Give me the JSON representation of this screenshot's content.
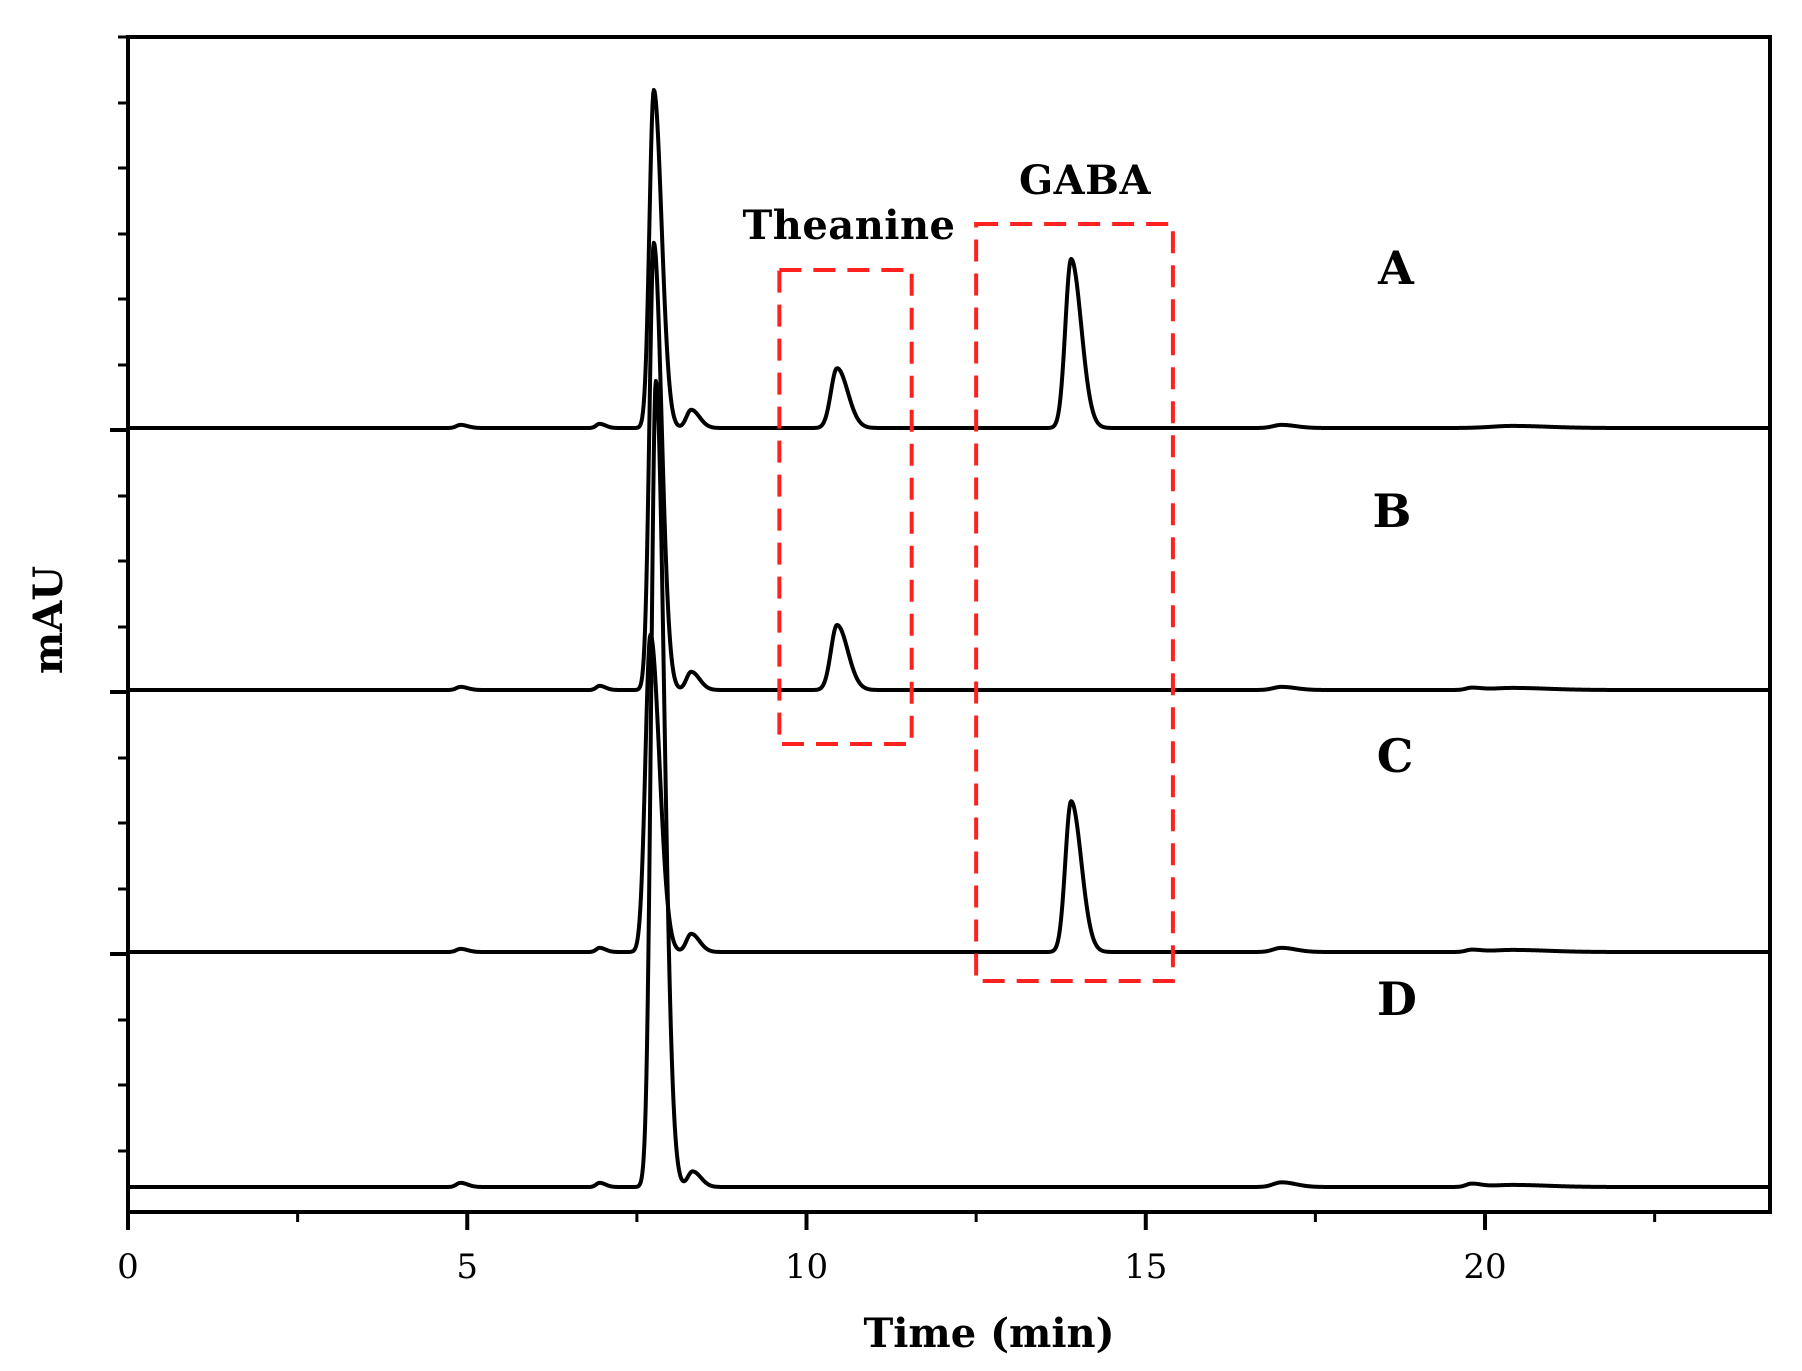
{
  "chart_data": {
    "type": "line",
    "title": "",
    "xlabel": "Time (min)",
    "ylabel": "mAU",
    "xlim": [
      0,
      24.2
    ],
    "xticks": [
      0,
      5,
      10,
      15,
      20
    ],
    "xtick_labels": [
      "0",
      "5",
      "10",
      "15",
      "20"
    ],
    "grid": false,
    "legend": "right",
    "annotations": [
      {
        "text": "Theanine",
        "x_range": [
          9.6,
          11.55
        ]
      },
      {
        "text": "GABA",
        "x_range": [
          12.5,
          15.4
        ]
      }
    ],
    "series": [
      {
        "name": "A",
        "baseline": 3,
        "peaks": [
          {
            "t": 4.9,
            "h": 0.012,
            "w": 0.06
          },
          {
            "t": 6.95,
            "h": 0.016,
            "w": 0.05
          },
          {
            "t": 7.75,
            "h": 1.3,
            "w": 0.065
          },
          {
            "t": 8.3,
            "h": 0.07,
            "w": 0.07
          },
          {
            "t": 10.45,
            "h": 0.23,
            "w": 0.09
          },
          {
            "t": 13.9,
            "h": 0.65,
            "w": 0.085
          },
          {
            "t": 17.0,
            "h": 0.012,
            "w": 0.12
          },
          {
            "t": 20.4,
            "h": 0.008,
            "w": 0.3
          }
        ]
      },
      {
        "name": "B",
        "baseline": 2,
        "peaks": [
          {
            "t": 4.9,
            "h": 0.012,
            "w": 0.06
          },
          {
            "t": 6.95,
            "h": 0.016,
            "w": 0.05
          },
          {
            "t": 7.75,
            "h": 1.72,
            "w": 0.065
          },
          {
            "t": 8.3,
            "h": 0.07,
            "w": 0.07
          },
          {
            "t": 10.45,
            "h": 0.25,
            "w": 0.09
          },
          {
            "t": 17.0,
            "h": 0.012,
            "w": 0.12
          },
          {
            "t": 19.8,
            "h": 0.008,
            "w": 0.08
          },
          {
            "t": 20.4,
            "h": 0.008,
            "w": 0.3
          }
        ]
      },
      {
        "name": "C",
        "baseline": 1,
        "peaks": [
          {
            "t": 4.9,
            "h": 0.012,
            "w": 0.06
          },
          {
            "t": 6.95,
            "h": 0.016,
            "w": 0.05
          },
          {
            "t": 7.7,
            "h": 1.22,
            "w": 0.075
          },
          {
            "t": 8.3,
            "h": 0.07,
            "w": 0.07
          },
          {
            "t": 13.9,
            "h": 0.58,
            "w": 0.085
          },
          {
            "t": 17.0,
            "h": 0.016,
            "w": 0.12
          },
          {
            "t": 19.8,
            "h": 0.008,
            "w": 0.08
          },
          {
            "t": 20.4,
            "h": 0.008,
            "w": 0.3
          }
        ]
      },
      {
        "name": "D",
        "baseline": 0.1,
        "peaks": [
          {
            "t": 4.9,
            "h": 0.016,
            "w": 0.06
          },
          {
            "t": 6.95,
            "h": 0.016,
            "w": 0.05
          },
          {
            "t": 7.78,
            "h": 3.1,
            "w": 0.07
          },
          {
            "t": 8.32,
            "h": 0.06,
            "w": 0.07
          },
          {
            "t": 17.0,
            "h": 0.018,
            "w": 0.12
          },
          {
            "t": 19.8,
            "h": 0.012,
            "w": 0.08
          },
          {
            "t": 20.4,
            "h": 0.008,
            "w": 0.3
          }
        ]
      }
    ],
    "colors": {
      "trace": "#000000",
      "highlight": "#ff2020"
    }
  }
}
